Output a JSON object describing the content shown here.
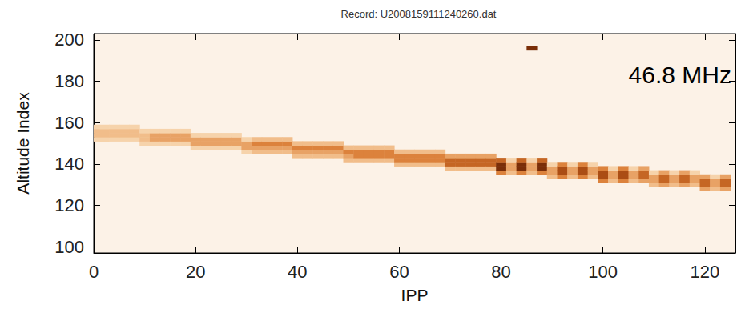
{
  "chart_data": {
    "type": "heatmap",
    "title": "Record: U2008159111240260.dat",
    "x_label": "IPP",
    "y_label": "Altitude Index",
    "annotation": "46.8 MHz",
    "xlim": [
      0,
      126
    ],
    "ylim": [
      97,
      203
    ],
    "xticks": [
      0,
      20,
      40,
      60,
      80,
      100,
      120
    ],
    "yticks": [
      100,
      120,
      140,
      160,
      180,
      200
    ],
    "grid": false,
    "cells": [
      [
        0,
        152,
        3
      ],
      [
        0,
        154,
        4
      ],
      [
        0,
        156,
        4
      ],
      [
        0,
        158,
        3
      ],
      [
        2,
        152,
        3
      ],
      [
        2,
        154,
        4
      ],
      [
        2,
        156,
        4
      ],
      [
        2,
        158,
        3
      ],
      [
        4,
        152,
        3
      ],
      [
        4,
        154,
        4
      ],
      [
        4,
        156,
        4
      ],
      [
        4,
        158,
        3
      ],
      [
        6,
        152,
        3
      ],
      [
        6,
        154,
        4
      ],
      [
        6,
        156,
        4
      ],
      [
        6,
        158,
        3
      ],
      [
        8,
        152,
        3
      ],
      [
        8,
        154,
        4
      ],
      [
        8,
        156,
        4
      ],
      [
        8,
        158,
        3
      ],
      [
        10,
        150,
        3
      ],
      [
        10,
        152,
        4
      ],
      [
        10,
        154,
        4
      ],
      [
        10,
        156,
        3
      ],
      [
        12,
        150,
        3
      ],
      [
        12,
        152,
        5
      ],
      [
        12,
        154,
        5
      ],
      [
        12,
        156,
        3
      ],
      [
        14,
        150,
        3
      ],
      [
        14,
        152,
        5
      ],
      [
        14,
        154,
        5
      ],
      [
        14,
        156,
        3
      ],
      [
        16,
        150,
        3
      ],
      [
        16,
        152,
        5
      ],
      [
        16,
        154,
        5
      ],
      [
        16,
        156,
        3
      ],
      [
        18,
        150,
        3
      ],
      [
        18,
        152,
        5
      ],
      [
        18,
        154,
        5
      ],
      [
        18,
        156,
        3
      ],
      [
        20,
        148,
        3
      ],
      [
        20,
        150,
        5
      ],
      [
        20,
        152,
        5
      ],
      [
        20,
        154,
        3
      ],
      [
        22,
        148,
        3
      ],
      [
        22,
        150,
        5
      ],
      [
        22,
        152,
        5
      ],
      [
        22,
        154,
        3
      ],
      [
        24,
        148,
        3
      ],
      [
        24,
        150,
        5
      ],
      [
        24,
        152,
        5
      ],
      [
        24,
        154,
        3
      ],
      [
        26,
        148,
        3
      ],
      [
        26,
        150,
        5
      ],
      [
        26,
        152,
        5
      ],
      [
        26,
        154,
        3
      ],
      [
        28,
        148,
        3
      ],
      [
        28,
        150,
        5
      ],
      [
        28,
        152,
        5
      ],
      [
        28,
        154,
        3
      ],
      [
        30,
        146,
        3
      ],
      [
        30,
        148,
        5
      ],
      [
        30,
        150,
        5
      ],
      [
        30,
        152,
        3
      ],
      [
        32,
        146,
        4
      ],
      [
        32,
        148,
        5
      ],
      [
        32,
        150,
        6
      ],
      [
        32,
        152,
        4
      ],
      [
        34,
        146,
        4
      ],
      [
        34,
        148,
        5
      ],
      [
        34,
        150,
        6
      ],
      [
        34,
        152,
        4
      ],
      [
        36,
        146,
        4
      ],
      [
        36,
        148,
        5
      ],
      [
        36,
        150,
        6
      ],
      [
        36,
        152,
        4
      ],
      [
        38,
        146,
        4
      ],
      [
        38,
        148,
        5
      ],
      [
        38,
        150,
        6
      ],
      [
        38,
        152,
        4
      ],
      [
        40,
        144,
        4
      ],
      [
        40,
        146,
        5
      ],
      [
        40,
        148,
        6
      ],
      [
        40,
        150,
        4
      ],
      [
        42,
        144,
        4
      ],
      [
        42,
        146,
        5
      ],
      [
        42,
        148,
        6
      ],
      [
        42,
        150,
        4
      ],
      [
        44,
        144,
        4
      ],
      [
        44,
        146,
        5
      ],
      [
        44,
        148,
        6
      ],
      [
        44,
        150,
        4
      ],
      [
        46,
        144,
        4
      ],
      [
        46,
        146,
        5
      ],
      [
        46,
        148,
        6
      ],
      [
        46,
        150,
        4
      ],
      [
        48,
        144,
        4
      ],
      [
        48,
        146,
        5
      ],
      [
        48,
        148,
        6
      ],
      [
        48,
        150,
        4
      ],
      [
        50,
        142,
        4
      ],
      [
        50,
        144,
        5
      ],
      [
        50,
        146,
        6
      ],
      [
        50,
        148,
        4
      ],
      [
        52,
        142,
        4
      ],
      [
        52,
        144,
        6
      ],
      [
        52,
        146,
        6
      ],
      [
        52,
        148,
        4
      ],
      [
        54,
        142,
        4
      ],
      [
        54,
        144,
        6
      ],
      [
        54,
        146,
        6
      ],
      [
        54,
        148,
        4
      ],
      [
        56,
        142,
        4
      ],
      [
        56,
        144,
        6
      ],
      [
        56,
        146,
        6
      ],
      [
        56,
        148,
        4
      ],
      [
        58,
        142,
        4
      ],
      [
        58,
        144,
        6
      ],
      [
        58,
        146,
        6
      ],
      [
        58,
        148,
        4
      ],
      [
        60,
        140,
        4
      ],
      [
        60,
        142,
        6
      ],
      [
        60,
        144,
        6
      ],
      [
        60,
        146,
        4
      ],
      [
        62,
        140,
        4
      ],
      [
        62,
        142,
        6
      ],
      [
        62,
        144,
        6
      ],
      [
        62,
        146,
        4
      ],
      [
        64,
        140,
        4
      ],
      [
        64,
        142,
        6
      ],
      [
        64,
        144,
        6
      ],
      [
        64,
        146,
        4
      ],
      [
        66,
        140,
        4
      ],
      [
        66,
        142,
        6
      ],
      [
        66,
        144,
        6
      ],
      [
        66,
        146,
        4
      ],
      [
        68,
        140,
        4
      ],
      [
        68,
        142,
        6
      ],
      [
        68,
        144,
        6
      ],
      [
        68,
        146,
        4
      ],
      [
        70,
        138,
        4
      ],
      [
        70,
        140,
        7
      ],
      [
        70,
        142,
        7
      ],
      [
        70,
        144,
        5
      ],
      [
        72,
        138,
        4
      ],
      [
        72,
        140,
        7
      ],
      [
        72,
        142,
        7
      ],
      [
        72,
        144,
        5
      ],
      [
        74,
        138,
        4
      ],
      [
        74,
        140,
        7
      ],
      [
        74,
        142,
        7
      ],
      [
        74,
        144,
        5
      ],
      [
        76,
        138,
        4
      ],
      [
        76,
        140,
        7
      ],
      [
        76,
        142,
        7
      ],
      [
        76,
        144,
        5
      ],
      [
        78,
        138,
        4
      ],
      [
        78,
        140,
        7
      ],
      [
        78,
        142,
        7
      ],
      [
        78,
        144,
        5
      ],
      [
        80,
        136,
        6
      ],
      [
        80,
        138,
        9
      ],
      [
        80,
        140,
        9
      ],
      [
        80,
        142,
        7
      ],
      [
        82,
        136,
        4
      ],
      [
        82,
        138,
        5
      ],
      [
        82,
        140,
        5
      ],
      [
        82,
        142,
        3
      ],
      [
        84,
        136,
        6
      ],
      [
        84,
        138,
        9
      ],
      [
        84,
        140,
        9
      ],
      [
        84,
        142,
        7
      ],
      [
        86,
        136,
        4
      ],
      [
        86,
        138,
        5
      ],
      [
        86,
        140,
        5
      ],
      [
        86,
        142,
        3
      ],
      [
        88,
        136,
        6
      ],
      [
        88,
        138,
        9
      ],
      [
        88,
        140,
        9
      ],
      [
        88,
        142,
        7
      ],
      [
        90,
        134,
        4
      ],
      [
        90,
        136,
        5
      ],
      [
        90,
        138,
        5
      ],
      [
        90,
        140,
        3
      ],
      [
        92,
        134,
        6
      ],
      [
        92,
        136,
        8
      ],
      [
        92,
        138,
        8
      ],
      [
        92,
        140,
        6
      ],
      [
        94,
        134,
        4
      ],
      [
        94,
        136,
        5
      ],
      [
        94,
        138,
        5
      ],
      [
        94,
        140,
        3
      ],
      [
        96,
        134,
        6
      ],
      [
        96,
        136,
        8
      ],
      [
        96,
        138,
        8
      ],
      [
        96,
        140,
        6
      ],
      [
        98,
        134,
        4
      ],
      [
        98,
        136,
        5
      ],
      [
        98,
        138,
        5
      ],
      [
        98,
        140,
        3
      ],
      [
        100,
        132,
        6
      ],
      [
        100,
        134,
        8
      ],
      [
        100,
        136,
        8
      ],
      [
        100,
        138,
        6
      ],
      [
        102,
        132,
        4
      ],
      [
        102,
        134,
        5
      ],
      [
        102,
        136,
        5
      ],
      [
        102,
        138,
        3
      ],
      [
        104,
        132,
        6
      ],
      [
        104,
        134,
        8
      ],
      [
        104,
        136,
        8
      ],
      [
        104,
        138,
        6
      ],
      [
        106,
        132,
        4
      ],
      [
        106,
        134,
        5
      ],
      [
        106,
        136,
        5
      ],
      [
        106,
        138,
        3
      ],
      [
        108,
        132,
        5
      ],
      [
        108,
        134,
        7
      ],
      [
        108,
        136,
        7
      ],
      [
        108,
        138,
        5
      ],
      [
        110,
        130,
        4
      ],
      [
        110,
        132,
        5
      ],
      [
        110,
        134,
        5
      ],
      [
        110,
        136,
        3
      ],
      [
        112,
        130,
        5
      ],
      [
        112,
        132,
        7
      ],
      [
        112,
        134,
        7
      ],
      [
        112,
        136,
        5
      ],
      [
        114,
        130,
        4
      ],
      [
        114,
        132,
        5
      ],
      [
        114,
        134,
        5
      ],
      [
        114,
        136,
        3
      ],
      [
        116,
        130,
        5
      ],
      [
        116,
        132,
        7
      ],
      [
        116,
        134,
        7
      ],
      [
        116,
        136,
        5
      ],
      [
        118,
        130,
        4
      ],
      [
        118,
        132,
        5
      ],
      [
        118,
        134,
        5
      ],
      [
        118,
        136,
        3
      ],
      [
        120,
        128,
        5
      ],
      [
        120,
        130,
        7
      ],
      [
        120,
        132,
        7
      ],
      [
        120,
        134,
        5
      ],
      [
        122,
        128,
        4
      ],
      [
        122,
        130,
        5
      ],
      [
        122,
        132,
        5
      ],
      [
        122,
        134,
        3
      ],
      [
        124,
        128,
        5
      ],
      [
        124,
        130,
        7
      ],
      [
        124,
        132,
        7
      ],
      [
        124,
        134,
        5
      ],
      [
        86,
        196,
        9
      ]
    ]
  }
}
